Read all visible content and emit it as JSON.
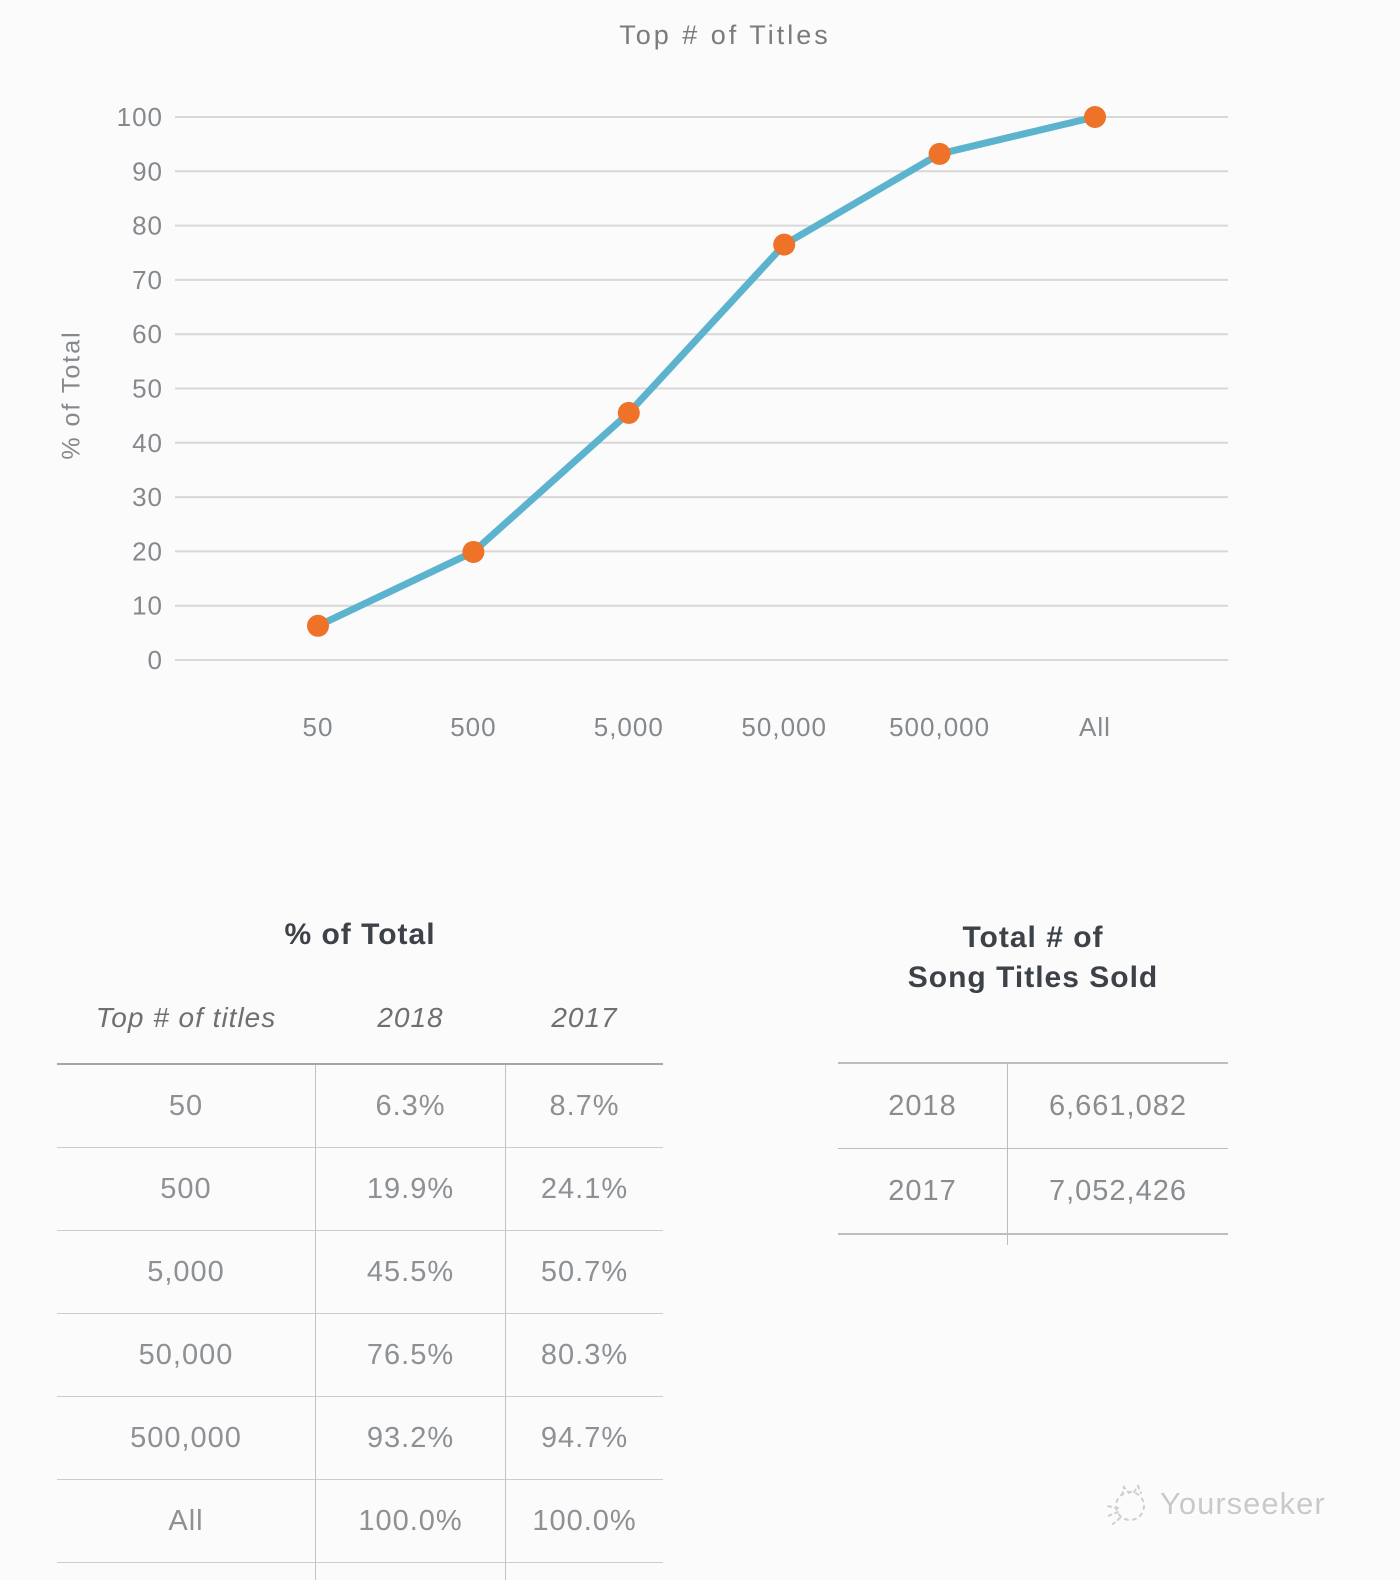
{
  "page": {
    "background": "#fbfbfb"
  },
  "chart_data": {
    "type": "line",
    "title": "Top # of Titles",
    "xlabel": "",
    "ylabel": "% of Total",
    "categories": [
      "50",
      "500",
      "5,000",
      "50,000",
      "500,000",
      "All"
    ],
    "series": [
      {
        "name": "2018",
        "values": [
          6.3,
          19.9,
          45.5,
          76.5,
          93.2,
          100.0
        ]
      }
    ],
    "ylim": [
      0,
      100
    ],
    "yticks": [
      0,
      10,
      20,
      30,
      40,
      50,
      60,
      70,
      80,
      90,
      100
    ],
    "grid": true,
    "legend": "none",
    "line_color": "#5CB3CE",
    "marker_color": "#EE7227",
    "grid_color": "#D8D8D8"
  },
  "left_table": {
    "title": "% of Total",
    "columns": [
      "Top # of titles",
      "2018",
      "2017"
    ],
    "rows": [
      {
        "label": "50",
        "y2018": "6.3%",
        "y2017": "8.7%"
      },
      {
        "label": "500",
        "y2018": "19.9%",
        "y2017": "24.1%"
      },
      {
        "label": "5,000",
        "y2018": "45.5%",
        "y2017": "50.7%"
      },
      {
        "label": "50,000",
        "y2018": "76.5%",
        "y2017": "80.3%"
      },
      {
        "label": "500,000",
        "y2018": "93.2%",
        "y2017": "94.7%"
      },
      {
        "label": "All",
        "y2018": "100.0%",
        "y2017": "100.0%"
      }
    ]
  },
  "right_table": {
    "title_line1": "Total # of",
    "title_line2": "Song Titles Sold",
    "rows": [
      {
        "label": "2018",
        "value": "6,661,082"
      },
      {
        "label": "2017",
        "value": "7,052,426"
      }
    ]
  },
  "watermark": {
    "label": "Yourseeker",
    "icon": "cat-doodle-icon"
  }
}
